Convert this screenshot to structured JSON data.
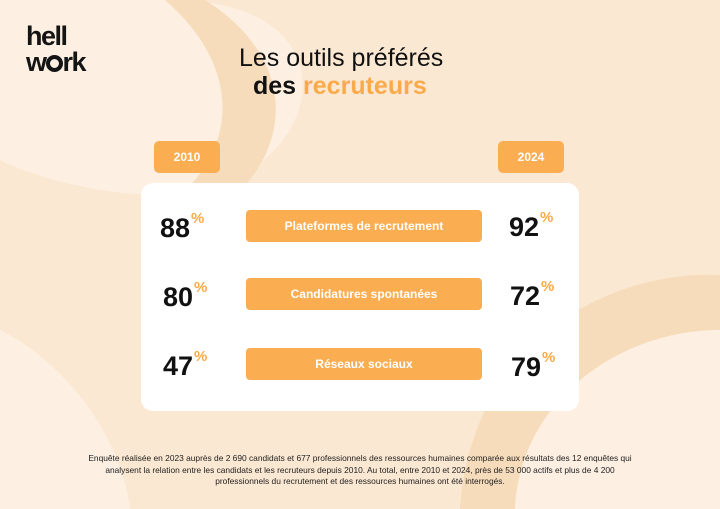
{
  "brand": {
    "logo_line1": "hell",
    "logo_line2_a": "w",
    "logo_line2_b": "rk"
  },
  "title": {
    "line1": "Les outils préférés",
    "line2_plain": "des",
    "line2_accent": "recruteurs"
  },
  "years": {
    "left": "2010",
    "right": "2024"
  },
  "rows": [
    {
      "label": "Plateformes de recrutement",
      "value_2010": "88",
      "value_2024": "92",
      "unit": "%"
    },
    {
      "label": "Candidatures spontanées",
      "value_2010": "80",
      "value_2024": "72",
      "unit": "%"
    },
    {
      "label": "Réseaux sociaux",
      "value_2010": "47",
      "value_2024": "79",
      "unit": "%"
    }
  ],
  "footnote": "Enquête réalisée en 2023 auprès de 2 690 candidats et 677 professionnels des ressources humaines comparée aux résultats des 12 enquêtes qui analysent la relation entre les candidats et les recruteurs depuis 2010. Au total, entre 2010 et 2024, près de 53 000 actifs et plus de 4 200 professionnels du recrutement et des ressources humaines ont été interrogés.",
  "colors": {
    "background": "#fbe8d2",
    "accent": "#fbad51",
    "card": "#ffffff"
  }
}
